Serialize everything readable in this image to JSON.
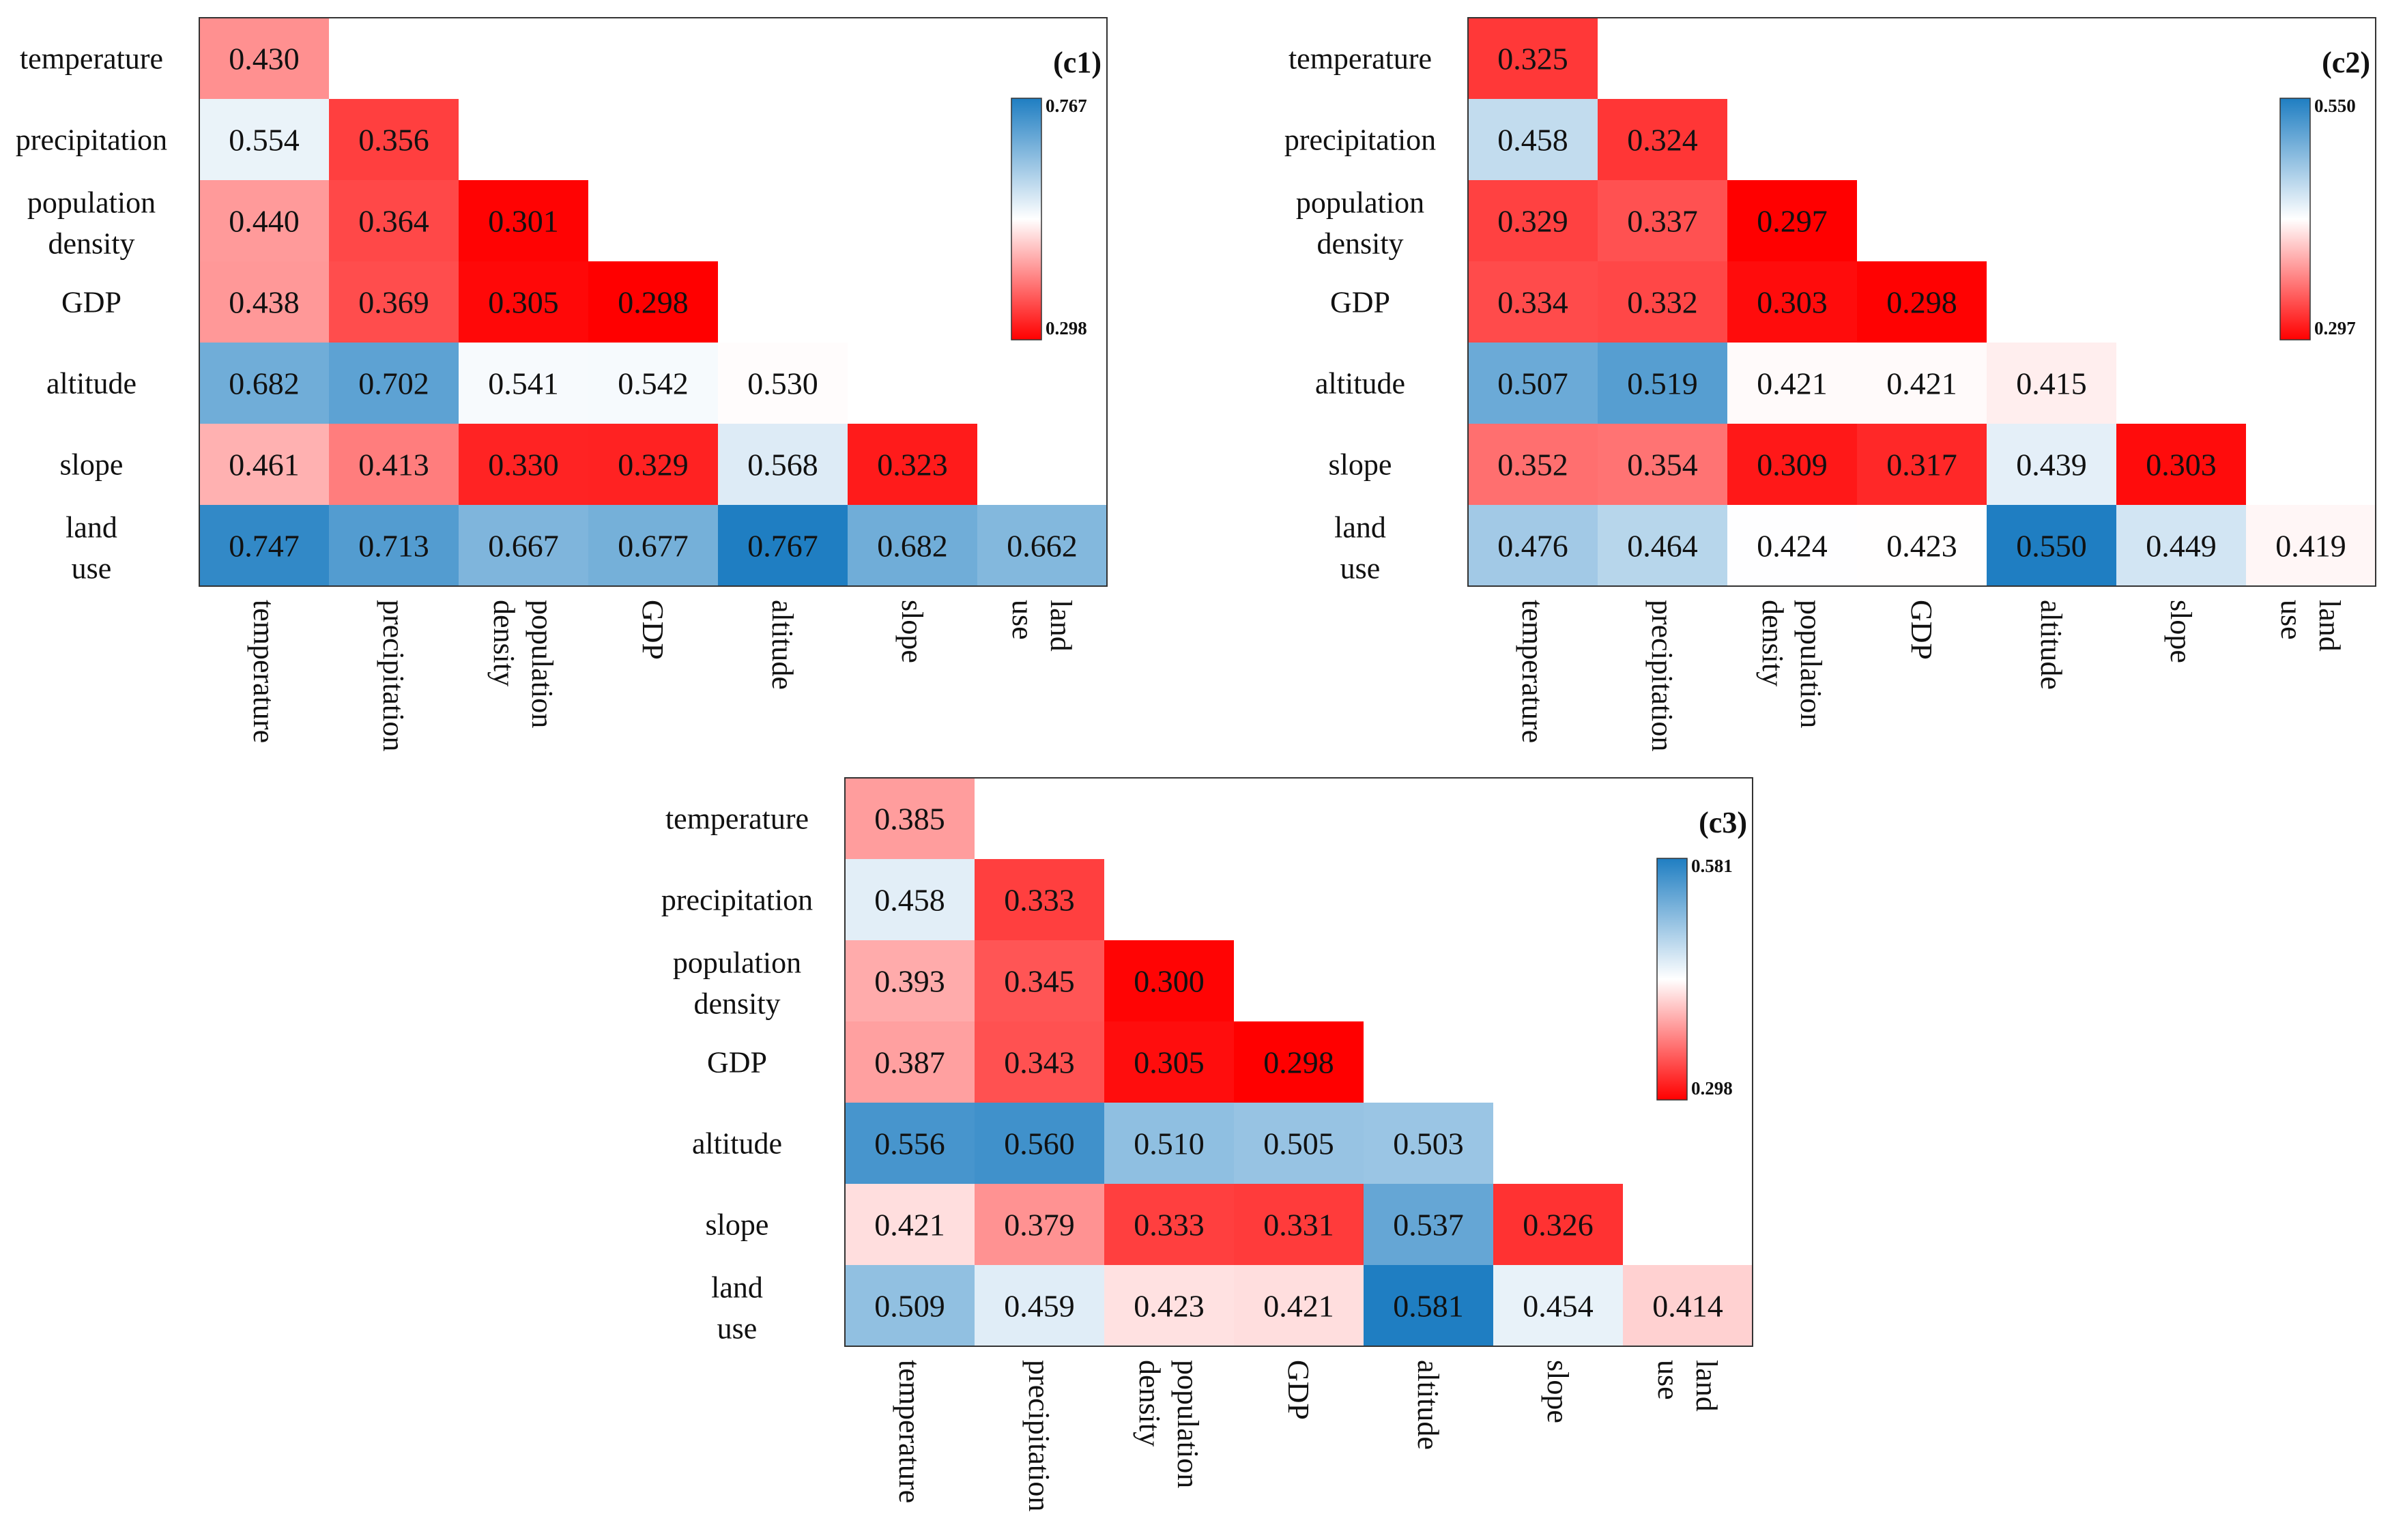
{
  "figure": {
    "variables": [
      "temperature",
      "precipitation",
      "population density",
      "GDP",
      "altitude",
      "slope",
      "land use"
    ],
    "row_labels": [
      [
        "temperature"
      ],
      [
        "precipitation"
      ],
      [
        "population",
        "density"
      ],
      [
        "GDP"
      ],
      [
        "altitude"
      ],
      [
        "slope"
      ],
      [
        "land",
        "use"
      ]
    ],
    "col_labels": [
      [
        "temperature"
      ],
      [
        "precipitation"
      ],
      [
        "population",
        "density"
      ],
      [
        "GDP"
      ],
      [
        "altitude"
      ],
      [
        "slope"
      ],
      [
        "land",
        "use"
      ]
    ],
    "colors": {
      "low": "#ff0000",
      "mid": "#ffffff",
      "high": "#1f7ec2"
    }
  },
  "chart_data": [
    {
      "type": "heatmap",
      "title": "(c1)",
      "layout": "lower-triangular",
      "rows": [
        "temperature",
        "precipitation",
        "population density",
        "GDP",
        "altitude",
        "slope",
        "land use"
      ],
      "columns": [
        "temperature",
        "precipitation",
        "population density",
        "GDP",
        "altitude",
        "slope",
        "land use"
      ],
      "values": [
        [
          0.43
        ],
        [
          0.554,
          0.356
        ],
        [
          0.44,
          0.364,
          0.301
        ],
        [
          0.438,
          0.369,
          0.305,
          0.298
        ],
        [
          0.682,
          0.702,
          0.541,
          0.542,
          0.53
        ],
        [
          0.461,
          0.413,
          0.33,
          0.329,
          0.568,
          0.323
        ],
        [
          0.747,
          0.713,
          0.667,
          0.677,
          0.767,
          0.682,
          0.662
        ]
      ],
      "colorbar": {
        "min": "0.298",
        "max": "0.767"
      },
      "scale": [
        0.298,
        0.767
      ]
    },
    {
      "type": "heatmap",
      "title": "(c2)",
      "layout": "lower-triangular",
      "rows": [
        "temperature",
        "precipitation",
        "population density",
        "GDP",
        "altitude",
        "slope",
        "land use"
      ],
      "columns": [
        "temperature",
        "precipitation",
        "population density",
        "GDP",
        "altitude",
        "slope",
        "land use"
      ],
      "values": [
        [
          0.325
        ],
        [
          0.458,
          0.324
        ],
        [
          0.329,
          0.337,
          0.297
        ],
        [
          0.334,
          0.332,
          0.303,
          0.298
        ],
        [
          0.507,
          0.519,
          0.421,
          0.421,
          0.415
        ],
        [
          0.352,
          0.354,
          0.309,
          0.317,
          0.439,
          0.303
        ],
        [
          0.476,
          0.464,
          0.424,
          0.423,
          0.55,
          0.449,
          0.419
        ]
      ],
      "colorbar": {
        "min": "0.297",
        "max": "0.550"
      },
      "scale": [
        0.297,
        0.55
      ]
    },
    {
      "type": "heatmap",
      "title": "(c3)",
      "layout": "lower-triangular",
      "rows": [
        "temperature",
        "precipitation",
        "population density",
        "GDP",
        "altitude",
        "slope",
        "land use"
      ],
      "columns": [
        "temperature",
        "precipitation",
        "population density",
        "GDP",
        "altitude",
        "slope",
        "land use"
      ],
      "values": [
        [
          0.385
        ],
        [
          0.458,
          0.333
        ],
        [
          0.393,
          0.345,
          0.3
        ],
        [
          0.387,
          0.343,
          0.305,
          0.298
        ],
        [
          0.556,
          0.56,
          0.51,
          0.505,
          0.503
        ],
        [
          0.421,
          0.379,
          0.333,
          0.331,
          0.537,
          0.326
        ],
        [
          0.509,
          0.459,
          0.423,
          0.421,
          0.581,
          0.454,
          0.414
        ]
      ],
      "colorbar": {
        "min": "0.298",
        "max": "0.581"
      },
      "scale": [
        0.298,
        0.581
      ]
    }
  ]
}
